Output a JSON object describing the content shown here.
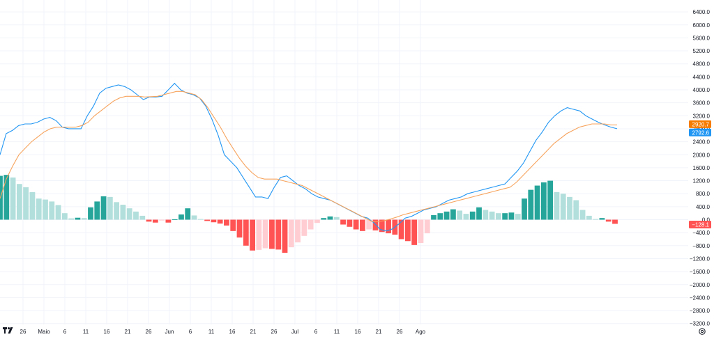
{
  "chart_data": {
    "type": "bar+line",
    "title": "",
    "x_labels": [
      {
        "label": "26",
        "index": 1
      },
      {
        "label": "Maio",
        "index": 4
      },
      {
        "label": "6",
        "index": 7
      },
      {
        "label": "11",
        "index": 10
      },
      {
        "label": "16",
        "index": 13
      },
      {
        "label": "21",
        "index": 16
      },
      {
        "label": "26",
        "index": 19
      },
      {
        "label": "Jun",
        "index": 22
      },
      {
        "label": "6",
        "index": 25
      },
      {
        "label": "11",
        "index": 28
      },
      {
        "label": "16",
        "index": 31
      },
      {
        "label": "21",
        "index": 34
      },
      {
        "label": "26",
        "index": 37
      },
      {
        "label": "Jul",
        "index": 40
      },
      {
        "label": "6",
        "index": 43
      },
      {
        "label": "11",
        "index": 46
      },
      {
        "label": "16",
        "index": 49
      },
      {
        "label": "21",
        "index": 52
      },
      {
        "label": "26",
        "index": 55
      },
      {
        "label": "Ago",
        "index": 58
      }
    ],
    "y_ticks": [
      6400,
      6000,
      5600,
      5200,
      4800,
      4400,
      4000,
      3600,
      3200,
      2800,
      2400,
      2000,
      1600,
      1200,
      800,
      400,
      0,
      -400,
      -800,
      -1200,
      -1600,
      -2000,
      -2400,
      -2800,
      -3200
    ],
    "y_tick_labels": [
      "6400.0",
      "6000.0",
      "5600.0",
      "5200.0",
      "4800.0",
      "4400.0",
      "4000.0",
      "3600.0",
      "3200.0",
      "2800.0",
      "2400.0",
      "2000.0",
      "1600.0",
      "1200.0",
      "800.0",
      "400.0",
      "0.0",
      "−400.0",
      "−800.0",
      "−1200.0",
      "−1600.0",
      "−2000.0",
      "−2400.0",
      "−2800.0",
      "−3200.0"
    ],
    "ylim": [
      -3300,
      6700
    ],
    "grid": true,
    "series": [
      {
        "type": "bar",
        "color_pos_strong": "#26a69a",
        "color_pos_weak": "#b2dfdb",
        "color_neg_strong": "#ff5252",
        "color_neg_weak": "#ffcdd2",
        "values": [
          1350,
          1380,
          1300,
          1100,
          1000,
          850,
          650,
          620,
          560,
          450,
          200,
          40,
          60,
          50,
          380,
          560,
          720,
          700,
          540,
          460,
          350,
          250,
          120,
          -60,
          -90,
          -25,
          -90,
          10,
          160,
          350,
          130,
          20,
          -40,
          -80,
          -120,
          -180,
          -350,
          -550,
          -800,
          -950,
          -930,
          -880,
          -900,
          -920,
          -1020,
          -850,
          -700,
          -500,
          -300,
          -100,
          50,
          100,
          80,
          -150,
          -220,
          -300,
          -350,
          -300,
          -330,
          -380,
          -420,
          -460,
          -600,
          -660,
          -780,
          -720,
          -420,
          140,
          200,
          250,
          320,
          280,
          180,
          250,
          380,
          300,
          250,
          200,
          200,
          220,
          180,
          650,
          920,
          1050,
          1150,
          1200,
          850,
          800,
          700,
          600,
          300,
          120,
          20,
          50,
          -60,
          -128
        ]
      },
      {
        "type": "line",
        "color": "#2196f3",
        "values": [
          2000,
          2650,
          2750,
          2900,
          2950,
          2950,
          3000,
          3100,
          3150,
          3050,
          2850,
          2800,
          2800,
          2800,
          3200,
          3500,
          3900,
          4050,
          4100,
          4150,
          4100,
          4000,
          3850,
          3700,
          3780,
          3780,
          3800,
          4000,
          4200,
          4000,
          3900,
          3850,
          3750,
          3500,
          3100,
          2600,
          2000,
          1800,
          1600,
          1300,
          1000,
          700,
          700,
          650,
          1000,
          1300,
          1350,
          1200,
          1050,
          950,
          800,
          700,
          650,
          600,
          500,
          400,
          300,
          200,
          100,
          50,
          -100,
          -300,
          -350,
          -280,
          -130,
          50,
          100,
          200,
          300,
          350,
          400,
          500,
          600,
          650,
          700,
          800,
          850,
          900,
          950,
          1000,
          1050,
          1100,
          1300,
          1500,
          1750,
          2100,
          2450,
          2700,
          3000,
          3200,
          3350,
          3450,
          3400,
          3350,
          3200,
          3100,
          3000,
          2920,
          2850,
          2800
        ]
      },
      {
        "type": "line",
        "color": "#f7a35c",
        "values": [
          650,
          1250,
          1650,
          2000,
          2200,
          2400,
          2550,
          2700,
          2800,
          2850,
          2850,
          2850,
          2850,
          2900,
          3000,
          3200,
          3350,
          3500,
          3650,
          3750,
          3800,
          3800,
          3800,
          3780,
          3790,
          3800,
          3850,
          3900,
          3950,
          3950,
          3900,
          3850,
          3700,
          3450,
          3150,
          2850,
          2500,
          2200,
          1900,
          1650,
          1450,
          1300,
          1250,
          1250,
          1250,
          1200,
          1150,
          1100,
          1050,
          950,
          850,
          750,
          650,
          550,
          450,
          350,
          250,
          150,
          50,
          -50,
          -60,
          -30,
          20,
          80,
          150,
          200,
          250,
          300,
          350,
          400,
          450,
          500,
          550,
          600,
          650,
          700,
          750,
          800,
          850,
          900,
          950,
          1000,
          1150,
          1350,
          1550,
          1750,
          1950,
          2150,
          2350,
          2500,
          2650,
          2750,
          2850,
          2900,
          2950,
          2950,
          2950,
          2920,
          2920
        ]
      }
    ],
    "price_badges": [
      {
        "label": "2920.7",
        "value": 2920.7,
        "color": "#f57c00"
      },
      {
        "label": "2792.6",
        "value": 2792.6,
        "color": "#2196f3"
      },
      {
        "label": "−128.1",
        "value": -128.1,
        "color": "#ff5252"
      }
    ]
  },
  "ui": {
    "settings_icon": "gear-icon",
    "logo": "tradingview-logo"
  }
}
